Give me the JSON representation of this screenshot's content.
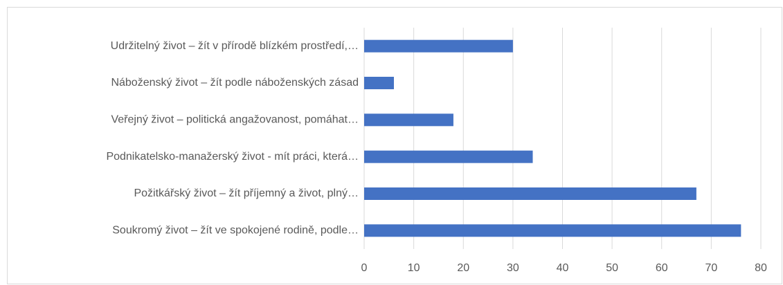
{
  "chart_data": {
    "type": "bar",
    "orientation": "horizontal",
    "categories": [
      "Udržitelný život – žít v přírodě blízkém prostředí,…",
      "Náboženský život – žít podle náboženských zásad",
      "Veřejný život – politická angažovanost, pomáhat…",
      "Podnikatelsko-manažerský život - mít práci, která…",
      "Požitkářský život – žít příjemný a život, plný…",
      "Soukromý život – žít ve spokojené rodině, podle…"
    ],
    "values": [
      30,
      6,
      18,
      34,
      67,
      76
    ],
    "color": "#4472c4",
    "xlim": [
      0,
      80
    ],
    "xticks": [
      0,
      10,
      20,
      30,
      40,
      50,
      60,
      70,
      80
    ],
    "grid": true
  }
}
